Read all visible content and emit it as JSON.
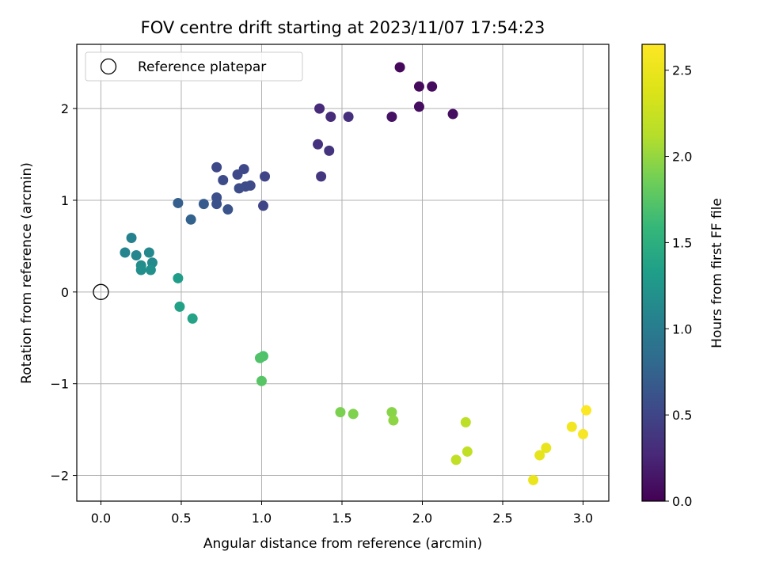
{
  "chart_data": {
    "type": "scatter",
    "title": "FOV centre drift starting at 2023/11/07 17:54:23",
    "xlabel": "Angular distance from reference (arcmin)",
    "ylabel": "Rotation from reference (arcmin)",
    "xlim": [
      -0.15,
      3.16
    ],
    "ylim": [
      -2.28,
      2.7
    ],
    "grid": true,
    "x_ticks": [
      0.0,
      0.5,
      1.0,
      1.5,
      2.0,
      2.5,
      3.0
    ],
    "x_tick_labels": [
      "0.0",
      "0.5",
      "1.0",
      "1.5",
      "2.0",
      "2.5",
      "3.0"
    ],
    "y_ticks": [
      -2,
      -1,
      0,
      1,
      2
    ],
    "y_tick_labels": [
      "−2",
      "−1",
      "0",
      "1",
      "2"
    ],
    "legend": {
      "placement": "top-left",
      "entries": [
        {
          "label": "Reference platepar",
          "marker": "open-circle"
        }
      ]
    },
    "reference_point": {
      "x": 0.0,
      "y": 0.0
    },
    "colorbar": {
      "label": "Hours from first FF file",
      "colormap": "viridis",
      "range": [
        0.0,
        2.65
      ],
      "ticks": [
        0.0,
        0.5,
        1.0,
        1.5,
        2.0,
        2.5
      ],
      "tick_labels": [
        "0.0",
        "0.5",
        "1.0",
        "1.5",
        "2.0",
        "2.5"
      ]
    },
    "points": [
      {
        "x": 1.86,
        "y": 2.45,
        "t": 0.05
      },
      {
        "x": 1.98,
        "y": 2.24,
        "t": 0.06
      },
      {
        "x": 2.06,
        "y": 2.24,
        "t": 0.07
      },
      {
        "x": 1.98,
        "y": 2.02,
        "t": 0.08
      },
      {
        "x": 2.19,
        "y": 1.94,
        "t": 0.09
      },
      {
        "x": 1.81,
        "y": 1.91,
        "t": 0.12
      },
      {
        "x": 1.36,
        "y": 2.0,
        "t": 0.28
      },
      {
        "x": 1.43,
        "y": 1.91,
        "t": 0.3
      },
      {
        "x": 1.54,
        "y": 1.91,
        "t": 0.32
      },
      {
        "x": 1.35,
        "y": 1.61,
        "t": 0.34
      },
      {
        "x": 1.42,
        "y": 1.54,
        "t": 0.36
      },
      {
        "x": 1.37,
        "y": 1.26,
        "t": 0.38
      },
      {
        "x": 0.72,
        "y": 1.36,
        "t": 0.52
      },
      {
        "x": 0.89,
        "y": 1.34,
        "t": 0.52
      },
      {
        "x": 0.85,
        "y": 1.28,
        "t": 0.53
      },
      {
        "x": 1.02,
        "y": 1.26,
        "t": 0.5
      },
      {
        "x": 0.76,
        "y": 1.22,
        "t": 0.55
      },
      {
        "x": 0.93,
        "y": 1.16,
        "t": 0.54
      },
      {
        "x": 0.9,
        "y": 1.15,
        "t": 0.55
      },
      {
        "x": 0.86,
        "y": 1.13,
        "t": 0.56
      },
      {
        "x": 0.72,
        "y": 1.03,
        "t": 0.58
      },
      {
        "x": 0.72,
        "y": 0.96,
        "t": 0.6
      },
      {
        "x": 1.01,
        "y": 0.94,
        "t": 0.5
      },
      {
        "x": 0.48,
        "y": 0.97,
        "t": 0.72
      },
      {
        "x": 0.64,
        "y": 0.96,
        "t": 0.68
      },
      {
        "x": 0.79,
        "y": 0.9,
        "t": 0.62
      },
      {
        "x": 0.56,
        "y": 0.79,
        "t": 0.75
      },
      {
        "x": 0.19,
        "y": 0.59,
        "t": 1.05
      },
      {
        "x": 0.15,
        "y": 0.43,
        "t": 1.08
      },
      {
        "x": 0.22,
        "y": 0.4,
        "t": 1.1
      },
      {
        "x": 0.3,
        "y": 0.43,
        "t": 1.12
      },
      {
        "x": 0.32,
        "y": 0.32,
        "t": 1.14
      },
      {
        "x": 0.25,
        "y": 0.29,
        "t": 1.16
      },
      {
        "x": 0.25,
        "y": 0.24,
        "t": 1.18
      },
      {
        "x": 0.31,
        "y": 0.24,
        "t": 1.2
      },
      {
        "x": 0.48,
        "y": 0.15,
        "t": 1.32
      },
      {
        "x": 0.49,
        "y": -0.16,
        "t": 1.36
      },
      {
        "x": 0.57,
        "y": -0.29,
        "t": 1.38
      },
      {
        "x": 1.01,
        "y": -0.7,
        "t": 1.7
      },
      {
        "x": 0.99,
        "y": -0.72,
        "t": 1.72
      },
      {
        "x": 1.0,
        "y": -0.97,
        "t": 1.75
      },
      {
        "x": 1.49,
        "y": -1.31,
        "t": 1.9
      },
      {
        "x": 1.57,
        "y": -1.33,
        "t": 1.92
      },
      {
        "x": 1.81,
        "y": -1.31,
        "t": 1.95
      },
      {
        "x": 1.82,
        "y": -1.4,
        "t": 1.97
      },
      {
        "x": 2.27,
        "y": -1.42,
        "t": 2.18
      },
      {
        "x": 2.28,
        "y": -1.74,
        "t": 2.2
      },
      {
        "x": 2.21,
        "y": -1.83,
        "t": 2.2
      },
      {
        "x": 2.77,
        "y": -1.7,
        "t": 2.48
      },
      {
        "x": 2.73,
        "y": -1.78,
        "t": 2.46
      },
      {
        "x": 2.69,
        "y": -2.05,
        "t": 2.5
      },
      {
        "x": 2.93,
        "y": -1.47,
        "t": 2.56
      },
      {
        "x": 3.0,
        "y": -1.55,
        "t": 2.6
      },
      {
        "x": 3.02,
        "y": -1.29,
        "t": 2.63
      }
    ]
  }
}
